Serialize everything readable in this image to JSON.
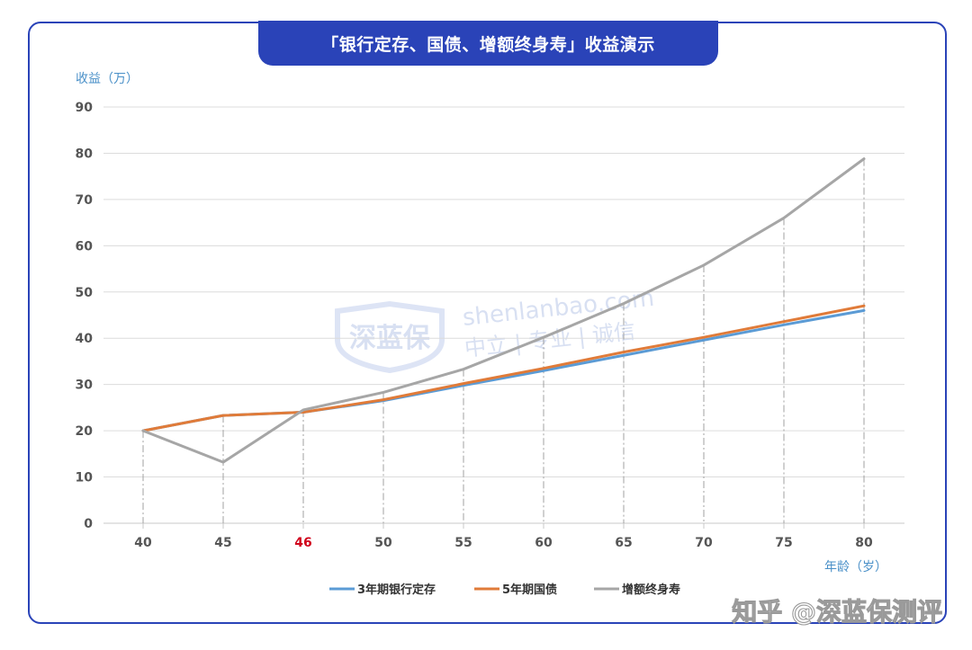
{
  "title": "「银行定存、国债、增额终身寿」收益演示",
  "watermark": {
    "brand": "深蓝保",
    "site": "shenlanbao.com",
    "slogan": "中立 | 专业 | 诚信"
  },
  "credit": "知乎 @深蓝保测评",
  "chart_data": {
    "type": "line",
    "ylabel": "收益（万）",
    "xlabel": "年龄（岁）",
    "ylim": [
      0,
      90
    ],
    "yticks": [
      0,
      10,
      20,
      30,
      40,
      50,
      60,
      70,
      80,
      90
    ],
    "categories": [
      "40",
      "45",
      "46",
      "50",
      "55",
      "60",
      "65",
      "70",
      "75",
      "80"
    ],
    "highlight_category": "46",
    "highlight_color": "#d0021b",
    "grid": true,
    "legend_position": "bottom",
    "series": [
      {
        "name": "3年期银行定存",
        "color": "#5b9bd5",
        "values": [
          20,
          23.3,
          24,
          26.5,
          29.8,
          33,
          36.3,
          39.6,
          42.9,
          46
        ]
      },
      {
        "name": "5年期国债",
        "color": "#e07b39",
        "values": [
          20,
          23.3,
          24,
          26.7,
          30.2,
          33.5,
          37,
          40.2,
          43.6,
          47
        ]
      },
      {
        "name": "增额终身寿",
        "color": "#a6a6a6",
        "values": [
          20,
          13.2,
          24.5,
          28.3,
          33.3,
          40.2,
          47.5,
          55.8,
          66,
          78.8
        ]
      }
    ]
  }
}
